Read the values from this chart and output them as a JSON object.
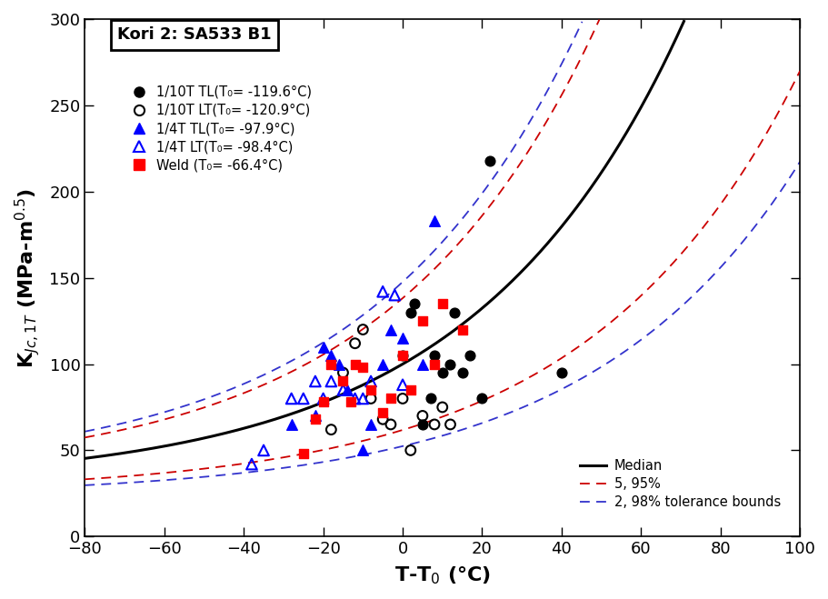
{
  "title_box": "Kori 2: SA533 B1",
  "xlabel": "T-T₀ (°C)",
  "ylabel": "Kₚc,1T (MPa-m°²)",
  "xlim": [
    -80,
    100
  ],
  "ylim": [
    0,
    300
  ],
  "xticks": [
    -80,
    -60,
    -40,
    -20,
    0,
    20,
    40,
    60,
    80,
    100
  ],
  "yticks": [
    0,
    50,
    100,
    150,
    200,
    250,
    300
  ],
  "scatter_1_label": "1/10T TL(T₀= -119.6°C)",
  "scatter_1_x": [
    0,
    2,
    3,
    5,
    7,
    8,
    10,
    12,
    13,
    15,
    17,
    20,
    22,
    40
  ],
  "scatter_1_y": [
    105,
    130,
    135,
    65,
    80,
    105,
    95,
    100,
    130,
    95,
    105,
    80,
    218,
    95
  ],
  "scatter_2_label": "1/10T LT(T₀= -120.9°C)",
  "scatter_2_x": [
    -18,
    -15,
    -12,
    -10,
    -8,
    -5,
    -3,
    0,
    2,
    5,
    8,
    10,
    12
  ],
  "scatter_2_y": [
    62,
    95,
    112,
    120,
    80,
    68,
    65,
    80,
    50,
    70,
    65,
    75,
    65
  ],
  "scatter_3_label": "1/4T TL(T₀= -97.9°C)",
  "scatter_3_x": [
    -28,
    -22,
    -20,
    -18,
    -16,
    -14,
    -10,
    -8,
    -5,
    -3,
    0,
    5,
    8
  ],
  "scatter_3_y": [
    65,
    70,
    110,
    105,
    100,
    85,
    50,
    65,
    100,
    120,
    115,
    100,
    183
  ],
  "scatter_4_label": "1/4T LT(T₀= -98.4°C)",
  "scatter_4_x": [
    -38,
    -35,
    -28,
    -25,
    -22,
    -20,
    -18,
    -15,
    -12,
    -10,
    -8,
    -5,
    -2,
    0
  ],
  "scatter_4_y": [
    42,
    50,
    80,
    80,
    90,
    80,
    90,
    85,
    80,
    80,
    90,
    142,
    140,
    88
  ],
  "scatter_5_label": "Weld (T₀= -66.4°C)",
  "scatter_5_x": [
    -25,
    -22,
    -20,
    -18,
    -15,
    -13,
    -12,
    -10,
    -8,
    -5,
    -3,
    0,
    2,
    5,
    8,
    10,
    15
  ],
  "scatter_5_y": [
    48,
    68,
    78,
    100,
    90,
    78,
    100,
    98,
    85,
    72,
    80,
    105,
    85,
    125,
    100,
    135,
    120
  ],
  "median_color": "#000000",
  "bounds_5_95_color": "#cc0000",
  "bounds_2_98_color": "#3333cc",
  "background_color": "#ffffff"
}
